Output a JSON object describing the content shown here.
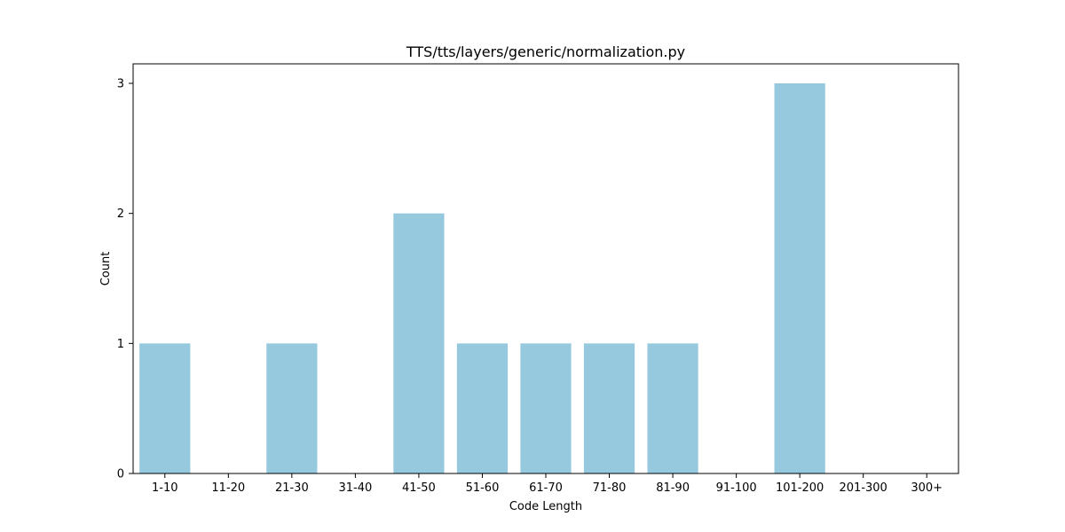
{
  "chart_data": {
    "type": "bar",
    "title": "TTS/tts/layers/generic/normalization.py",
    "xlabel": "Code Length",
    "ylabel": "Count",
    "categories": [
      "1-10",
      "11-20",
      "21-30",
      "31-40",
      "41-50",
      "51-60",
      "61-70",
      "71-80",
      "81-90",
      "91-100",
      "101-200",
      "201-300",
      "300+"
    ],
    "values": [
      1,
      0,
      1,
      0,
      2,
      1,
      1,
      1,
      1,
      0,
      3,
      0,
      0
    ],
    "yticks": [
      "0",
      "1",
      "2",
      "3"
    ],
    "ylim": [
      0,
      3.15
    ],
    "grid": false,
    "bar_color": "#96c9de",
    "axis_color": "#000000"
  }
}
